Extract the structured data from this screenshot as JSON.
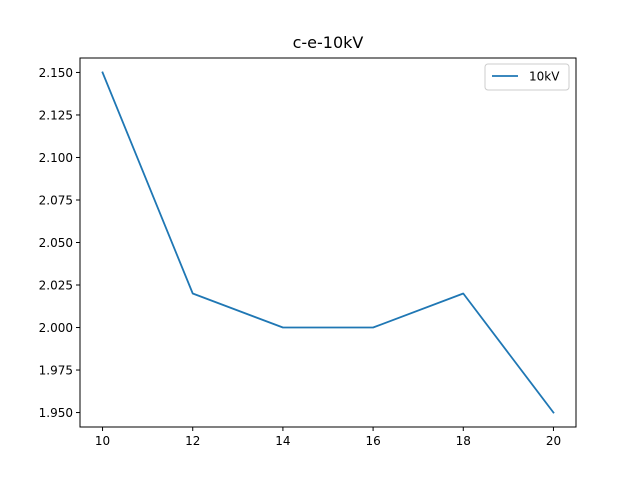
{
  "chart_data": {
    "type": "line",
    "title": "c-e-10kV",
    "xlabel": "",
    "ylabel": "",
    "x": [
      10,
      12,
      14,
      16,
      18,
      20
    ],
    "series": [
      {
        "name": "10kV",
        "values": [
          2.15,
          2.02,
          2.0,
          2.0,
          2.02,
          1.95
        ],
        "color": "#1f77b4"
      }
    ],
    "xlim": [
      9.5,
      20.5
    ],
    "ylim": [
      1.9415,
      2.1585
    ],
    "xticks": [
      10,
      12,
      14,
      16,
      18,
      20
    ],
    "xtick_labels": [
      "10",
      "12",
      "14",
      "16",
      "18",
      "20"
    ],
    "yticks": [
      1.95,
      1.975,
      2.0,
      2.025,
      2.05,
      2.075,
      2.1,
      2.125,
      2.15
    ],
    "ytick_labels": [
      "1.950",
      "1.975",
      "2.000",
      "2.025",
      "2.050",
      "2.075",
      "2.100",
      "2.125",
      "2.150"
    ],
    "grid": false,
    "legend": {
      "position": "top-right",
      "entries": [
        "10kV"
      ]
    }
  }
}
